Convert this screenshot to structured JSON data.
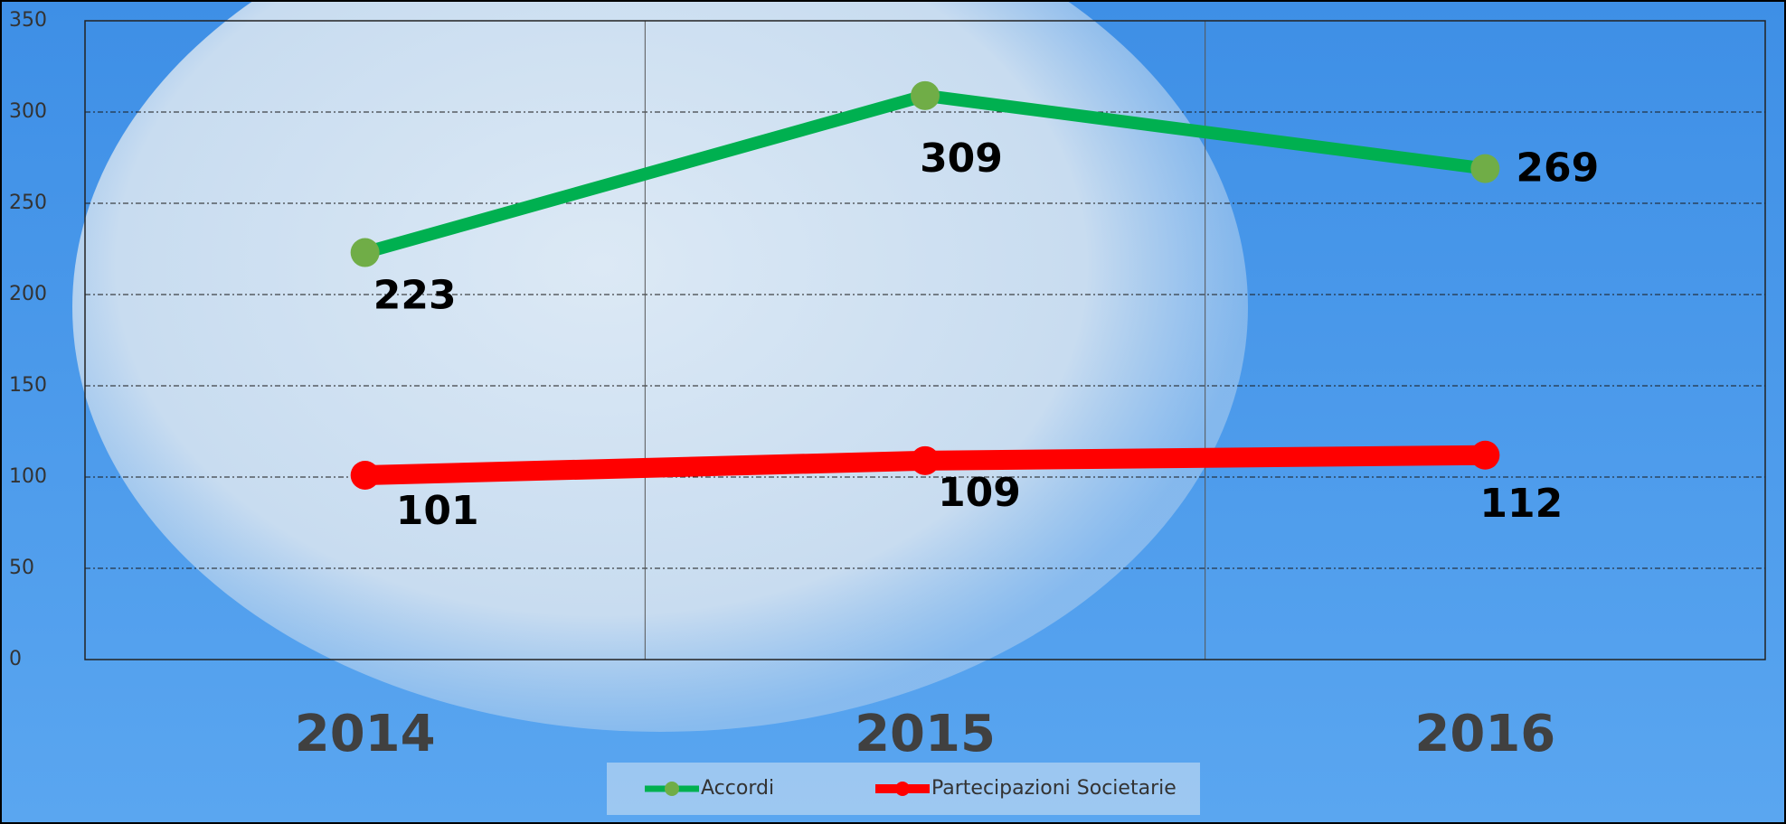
{
  "chart_data": {
    "type": "line",
    "categories": [
      "2014",
      "2015",
      "2016"
    ],
    "series": [
      {
        "name": "Accordi",
        "color": "#00b050",
        "marker_color": "#70ad47",
        "values": [
          223,
          309,
          269
        ]
      },
      {
        "name": "Partecipazioni Societarie",
        "color": "#ff0000",
        "marker_color": "#ff0000",
        "values": [
          101,
          109,
          112
        ]
      }
    ],
    "ylim": [
      0,
      350
    ],
    "yticks": [
      0,
      50,
      100,
      150,
      200,
      250,
      300,
      350
    ],
    "grid": true,
    "legend": "bottom"
  }
}
